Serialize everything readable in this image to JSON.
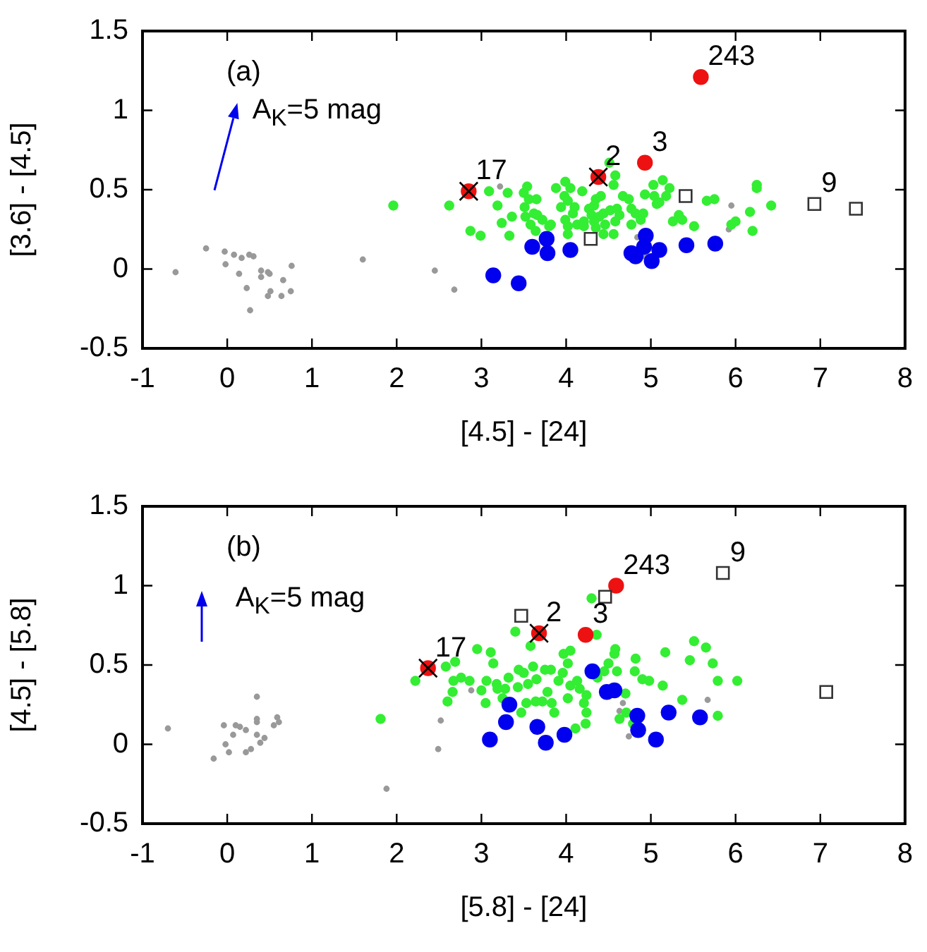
{
  "chart_data": [
    {
      "type": "scatter",
      "xlabel": "[4.5] - [24]",
      "ylabel": "[3.6] - [4.5]",
      "xlim": [
        -1,
        8
      ],
      "ylim": [
        -0.5,
        1.5
      ],
      "xticks": [
        -1,
        0,
        1,
        2,
        3,
        4,
        5,
        6,
        7,
        8
      ],
      "yticks": [
        -0.5,
        0,
        0.5,
        1,
        1.5
      ],
      "annotations": [
        "(a)",
        "A$_{K}$=5 mag",
        {
          "text": "17",
          "x": 2.85,
          "y": 0.49
        },
        {
          "text": "2",
          "x": 4.38,
          "y": 0.58
        },
        {
          "text": "3",
          "x": 4.93,
          "y": 0.67
        },
        {
          "text": "243",
          "x": 5.59,
          "y": 1.21
        },
        {
          "text": "9",
          "x": 6.93,
          "y": 0.41
        }
      ],
      "series": [
        {
          "type": "scatter",
          "color": "#999999",
          "marker": "circle",
          "x": [
            -0.61,
            -0.25,
            -0.03,
            -0.02,
            0.08,
            0.17,
            0.26,
            0.31,
            0.14,
            0.4,
            0.4,
            0.48,
            0.5,
            0.23,
            0.51,
            0.48,
            0.64,
            0.66,
            0.76,
            0.75,
            0.27,
            1.6,
            2.45,
            2.68,
            3.22,
            5.95,
            4.84,
            4.93,
            5.92
          ],
          "values": [
            -0.02,
            0.13,
            0.11,
            0.03,
            0.09,
            0.07,
            0.09,
            0.08,
            -0.03,
            -0.01,
            -0.05,
            -0.02,
            -0.03,
            -0.12,
            -0.14,
            -0.17,
            -0.17,
            -0.07,
            0.02,
            -0.14,
            -0.26,
            0.06,
            -0.01,
            -0.13,
            0.52,
            0.4,
            0.2,
            0.08,
            0.25
          ]
        },
        {
          "type": "scatter",
          "color": "#33ee33",
          "marker": "circle",
          "x": [
            1.96,
            2.62,
            2.87,
            2.99,
            3.09,
            3.19,
            3.24,
            3.31,
            3.33,
            3.36,
            3.5,
            3.54,
            3.51,
            3.56,
            3.65,
            3.52,
            3.62,
            3.66,
            3.58,
            3.72,
            3.64,
            3.82,
            3.8,
            3.88,
            3.99,
            4.05,
            3.98,
            4.02,
            3.94,
            4.1,
            4.08,
            3.99,
            4.02,
            4.13,
            4.02,
            4.21,
            4.21,
            4.19,
            4.27,
            4.33,
            4.3,
            4.35,
            4.39,
            4.41,
            4.44,
            4.33,
            4.35,
            4.46,
            4.44,
            4.51,
            4.58,
            4.56,
            4.52,
            4.58,
            4.56,
            4.67,
            4.6,
            4.63,
            4.74,
            4.77,
            4.82,
            4.77,
            4.88,
            4.91,
            4.93,
            5.04,
            5.07,
            5.03,
            5.14,
            5.22,
            5.18,
            5.1,
            5.26,
            5.33,
            5.37,
            5.51,
            5.66,
            5.75,
            5.95,
            6.0,
            6.17,
            6.2,
            6.25,
            6.25,
            6.42
          ],
          "values": [
            0.4,
            0.4,
            0.24,
            0.21,
            0.49,
            0.4,
            0.29,
            0.48,
            0.21,
            0.33,
            0.48,
            0.52,
            0.39,
            0.44,
            0.44,
            0.33,
            0.35,
            0.34,
            0.28,
            0.31,
            0.24,
            0.28,
            0.27,
            0.51,
            0.55,
            0.51,
            0.46,
            0.43,
            0.39,
            0.39,
            0.35,
            0.31,
            0.27,
            0.28,
            0.22,
            0.3,
            0.27,
            0.49,
            0.38,
            0.4,
            0.34,
            0.44,
            0.33,
            0.46,
            0.35,
            0.3,
            0.26,
            0.28,
            0.22,
            0.67,
            0.59,
            0.53,
            0.37,
            0.3,
            0.22,
            0.46,
            0.38,
            0.34,
            0.44,
            0.38,
            0.35,
            0.28,
            0.31,
            0.35,
            0.47,
            0.46,
            0.41,
            0.53,
            0.56,
            0.51,
            0.46,
            0.42,
            0.3,
            0.34,
            0.31,
            0.27,
            0.43,
            0.44,
            0.28,
            0.3,
            0.36,
            0.24,
            0.53,
            0.51,
            0.4
          ]
        },
        {
          "type": "scatter",
          "color": "#0000ee",
          "marker": "circle",
          "x": [
            3.14,
            3.44,
            3.6,
            3.77,
            3.78,
            4.05,
            4.77,
            4.82,
            4.92,
            4.94,
            5.01,
            5.1,
            5.42,
            5.76
          ],
          "values": [
            -0.04,
            -0.09,
            0.14,
            0.19,
            0.1,
            0.12,
            0.1,
            0.08,
            0.14,
            0.21,
            0.05,
            0.12,
            0.15,
            0.16
          ]
        },
        {
          "type": "scatter",
          "color": "#ee1111",
          "marker": "circle",
          "x": [
            2.85,
            4.38,
            4.93,
            5.59
          ],
          "values": [
            0.49,
            0.58,
            0.67,
            1.21
          ]
        },
        {
          "type": "scatter",
          "color": "#333333",
          "marker": "square",
          "x": [
            5.41,
            4.29,
            6.93,
            7.42
          ],
          "values": [
            0.46,
            0.19,
            0.41,
            0.38
          ]
        },
        {
          "type": "scatter",
          "color": "#000000",
          "marker": "cross",
          "x": [
            2.85,
            4.38
          ],
          "values": [
            0.49,
            0.58
          ]
        }
      ]
    },
    {
      "type": "scatter",
      "xlabel": "[5.8] - [24]",
      "ylabel": "[4.5] - [5.8]",
      "xlim": [
        -1,
        8
      ],
      "ylim": [
        -0.5,
        1.5
      ],
      "xticks": [
        -1,
        0,
        1,
        2,
        3,
        4,
        5,
        6,
        7,
        8
      ],
      "yticks": [
        -0.5,
        0,
        0.5,
        1,
        1.5
      ],
      "annotations": [
        "(b)",
        "A$_{K}$=5 mag",
        {
          "text": "17",
          "x": 2.37,
          "y": 0.48
        },
        {
          "text": "2",
          "x": 3.68,
          "y": 0.7
        },
        {
          "text": "3",
          "x": 4.23,
          "y": 0.69
        },
        {
          "text": "243",
          "x": 4.59,
          "y": 1.0
        },
        {
          "text": "9",
          "x": 5.85,
          "y": 1.08
        }
      ],
      "series": [
        {
          "type": "scatter",
          "color": "#999999",
          "marker": "circle",
          "x": [
            -0.7,
            -0.16,
            -0.04,
            -0.02,
            0.02,
            0.07,
            0.1,
            0.15,
            0.22,
            0.22,
            0.28,
            0.35,
            0.35,
            0.35,
            0.35,
            0.39,
            0.44,
            0.55,
            0.59,
            0.61,
            1.88,
            2.49,
            2.52,
            2.88,
            4.67,
            4.63,
            4.74,
            5.67
          ],
          "values": [
            0.1,
            -0.09,
            0.12,
            0.0,
            -0.05,
            0.06,
            0.12,
            0.11,
            0.09,
            -0.05,
            -0.03,
            0.3,
            0.16,
            0.14,
            0.06,
            0.01,
            0.04,
            0.12,
            0.17,
            0.14,
            -0.28,
            -0.03,
            0.15,
            0.34,
            0.26,
            0.21,
            0.05,
            0.28
          ]
        },
        {
          "type": "scatter",
          "color": "#33ee33",
          "marker": "circle",
          "x": [
            1.81,
            2.22,
            2.58,
            2.69,
            2.67,
            2.76,
            2.86,
            2.6,
            2.66,
            3.32,
            3.28,
            3.4,
            3.58,
            2.95,
            3.11,
            3.14,
            3.06,
            3.18,
            3.0,
            3.19,
            3.25,
            3.05,
            3.44,
            3.5,
            3.61,
            3.43,
            3.55,
            3.65,
            3.75,
            3.82,
            3.78,
            3.72,
            3.64,
            3.53,
            3.47,
            3.83,
            3.86,
            3.97,
            4.05,
            3.91,
            4.02,
            3.96,
            4.05,
            4.02,
            4.13,
            4.16,
            4.24,
            4.21,
            4.24,
            4.11,
            4.23,
            4.3,
            4.36,
            4.37,
            4.45,
            4.5,
            4.57,
            4.58,
            4.6,
            4.7,
            4.63,
            4.71,
            4.82,
            4.81,
            4.9,
            4.98,
            4.79,
            5.14,
            5.17,
            5.37,
            5.46,
            5.51,
            5.65,
            5.73,
            5.79,
            5.79,
            6.02
          ],
          "values": [
            0.16,
            0.4,
            0.49,
            0.52,
            0.4,
            0.42,
            0.4,
            0.27,
            0.33,
            0.42,
            0.35,
            0.71,
            0.62,
            0.6,
            0.58,
            0.51,
            0.4,
            0.38,
            0.34,
            0.35,
            0.29,
            0.26,
            0.47,
            0.45,
            0.49,
            0.36,
            0.38,
            0.41,
            0.47,
            0.47,
            0.33,
            0.27,
            0.27,
            0.26,
            0.2,
            0.26,
            0.2,
            0.57,
            0.59,
            0.4,
            0.51,
            0.45,
            0.37,
            0.29,
            0.4,
            0.35,
            0.31,
            0.26,
            0.2,
            0.1,
            0.13,
            0.92,
            0.69,
            0.42,
            0.46,
            0.51,
            0.57,
            0.6,
            0.46,
            0.32,
            0.16,
            0.2,
            0.54,
            0.46,
            0.41,
            0.4,
            0.13,
            0.37,
            0.58,
            0.28,
            0.53,
            0.65,
            0.61,
            0.51,
            0.4,
            0.18,
            0.4
          ]
        },
        {
          "type": "scatter",
          "color": "#0000ee",
          "marker": "circle",
          "x": [
            3.1,
            3.29,
            3.33,
            3.66,
            3.76,
            3.98,
            4.31,
            4.48,
            4.57,
            4.84,
            4.85,
            5.06,
            5.21,
            5.58
          ],
          "values": [
            0.03,
            0.14,
            0.25,
            0.11,
            0.01,
            0.06,
            0.46,
            0.33,
            0.34,
            0.18,
            0.09,
            0.03,
            0.2,
            0.17
          ]
        },
        {
          "type": "scatter",
          "color": "#ee1111",
          "marker": "circle",
          "x": [
            2.37,
            3.68,
            4.23,
            4.59
          ],
          "values": [
            0.48,
            0.7,
            0.69,
            1.0
          ]
        },
        {
          "type": "scatter",
          "color": "#333333",
          "marker": "square",
          "x": [
            4.46,
            3.47,
            5.85,
            7.07
          ],
          "values": [
            0.93,
            0.81,
            1.08,
            0.33
          ]
        },
        {
          "type": "scatter",
          "color": "#000000",
          "marker": "cross",
          "x": [
            2.37,
            3.68
          ],
          "values": [
            0.48,
            0.7
          ]
        }
      ]
    }
  ]
}
